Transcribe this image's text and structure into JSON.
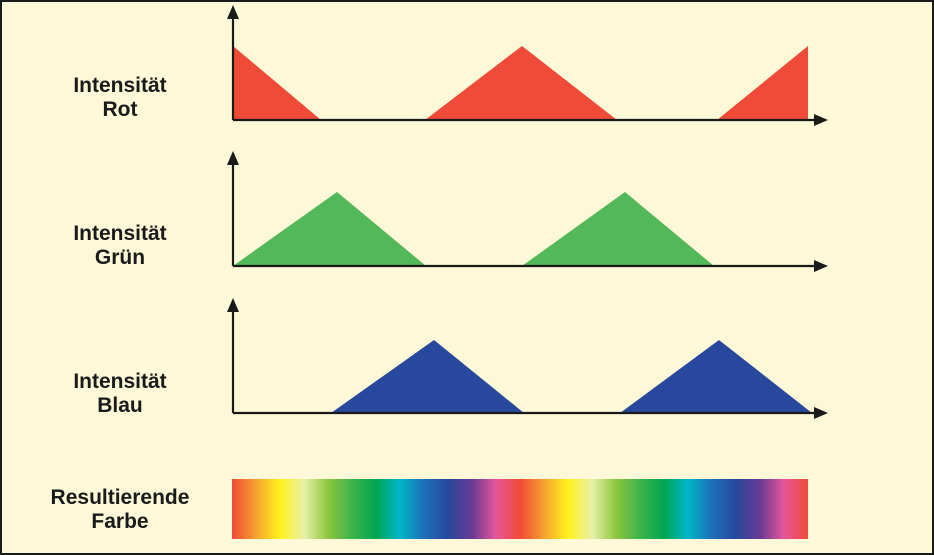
{
  "colors": {
    "background": "#fdf8d7",
    "red": "#f04a38",
    "green": "#52b85a",
    "blue": "#27489c",
    "axis": "#1a1a1a"
  },
  "rows": {
    "red": {
      "line1": "Intensität",
      "line2": "Rot"
    },
    "green": {
      "line1": "Intensität",
      "line2": "Grün"
    },
    "blue": {
      "line1": "Intensität",
      "line2": "Blau"
    }
  },
  "result": {
    "line1": "Resultierende",
    "line2": "Farbe"
  },
  "spectrum_stops": [
    "#f04a38",
    "#f7a22e",
    "#fff21c",
    "#e8f0a8",
    "#8dc63f",
    "#3db44a",
    "#00a651",
    "#00b5c8",
    "#1e6fb8",
    "#27489c",
    "#6a3a94",
    "#e5569a",
    "#f04a38",
    "#f7a22e",
    "#fff21c",
    "#e8f0a8",
    "#8dc63f",
    "#3db44a",
    "#00a651",
    "#00b5c8",
    "#1e6fb8",
    "#27489c",
    "#6a3a94",
    "#e5569a",
    "#f04a38"
  ]
}
